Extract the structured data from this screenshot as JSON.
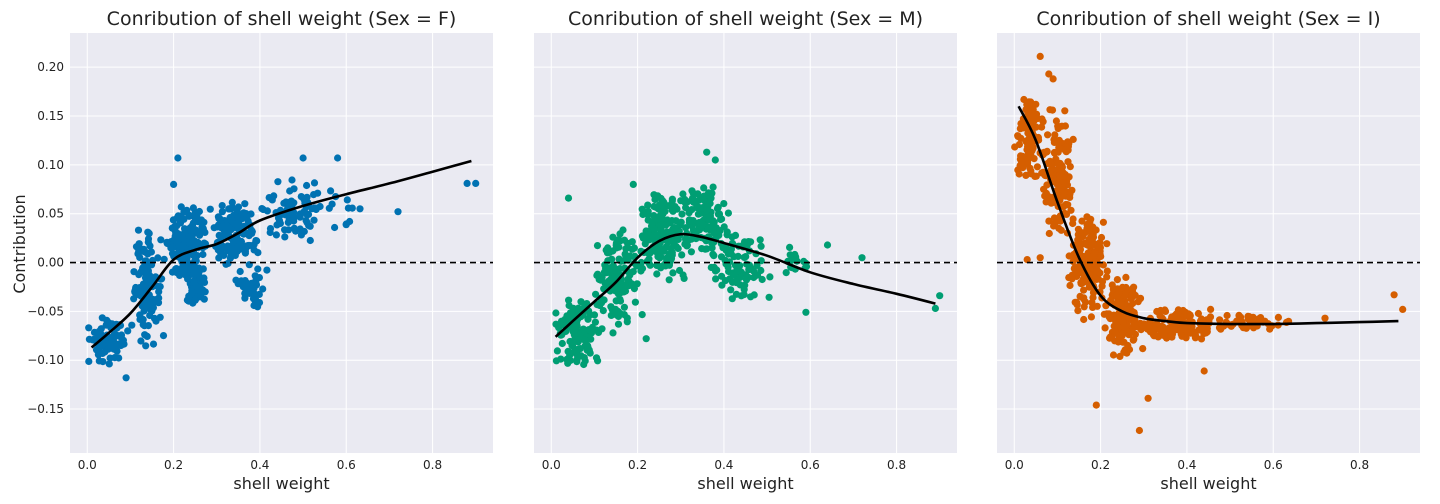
{
  "figure": {
    "ylabel": "Contribution",
    "colors": {
      "background": "#eaeaf2",
      "grid": "#ffffff",
      "trend": "#000000",
      "zero_line": "#000000"
    }
  },
  "chart_data": [
    {
      "type": "scatter",
      "title": "Conribution of shell weight (Sex = F)",
      "xlabel": "shell weight",
      "ylabel": "Contribution",
      "xlim": [
        -0.04,
        0.94
      ],
      "ylim": [
        -0.195,
        0.235
      ],
      "xticks": [
        "0.0",
        "0.2",
        "0.4",
        "0.6",
        "0.8"
      ],
      "yticks": [
        "−0.15",
        "−0.10",
        "−0.05",
        "0.00",
        "0.05",
        "0.10",
        "0.15",
        "0.20"
      ],
      "grid": true,
      "reference_line": {
        "y": 0,
        "style": "dashed"
      },
      "color": "#0072b2",
      "trend": {
        "x": [
          0.01,
          0.05,
          0.1,
          0.15,
          0.2,
          0.25,
          0.3,
          0.35,
          0.4,
          0.5,
          0.6,
          0.7,
          0.8,
          0.89
        ],
        "y": [
          -0.087,
          -0.072,
          -0.052,
          -0.025,
          0.003,
          0.013,
          0.019,
          0.03,
          0.043,
          0.058,
          0.07,
          0.081,
          0.093,
          0.104
        ]
      },
      "clusters": [
        {
          "x": [
            0.0,
            0.1
          ],
          "y": [
            -0.105,
            -0.055
          ],
          "n": 90,
          "seed": 11
        },
        {
          "x": [
            0.1,
            0.18
          ],
          "y": [
            -0.09,
            0.04
          ],
          "n": 110,
          "seed": 12
        },
        {
          "x": [
            0.18,
            0.28
          ],
          "y": [
            -0.02,
            0.065
          ],
          "n": 150,
          "seed": 13
        },
        {
          "x": [
            0.22,
            0.28
          ],
          "y": [
            -0.045,
            0.0
          ],
          "n": 70,
          "seed": 14
        },
        {
          "x": [
            0.28,
            0.4
          ],
          "y": [
            -0.005,
            0.065
          ],
          "n": 130,
          "seed": 15
        },
        {
          "x": [
            0.34,
            0.42
          ],
          "y": [
            -0.05,
            0.0
          ],
          "n": 40,
          "seed": 16
        },
        {
          "x": [
            0.4,
            0.55
          ],
          "y": [
            0.02,
            0.09
          ],
          "n": 80,
          "seed": 17
        },
        {
          "x": [
            0.55,
            0.65
          ],
          "y": [
            0.03,
            0.08
          ],
          "n": 12,
          "seed": 18
        }
      ],
      "extra_points": [
        [
          0.21,
          0.107
        ],
        [
          0.5,
          0.107
        ],
        [
          0.58,
          0.107
        ],
        [
          0.72,
          0.052
        ],
        [
          0.88,
          0.081
        ],
        [
          0.9,
          0.081
        ],
        [
          0.09,
          -0.118
        ],
        [
          0.2,
          0.08
        ]
      ]
    },
    {
      "type": "scatter",
      "title": "Conribution of shell weight (Sex = M)",
      "xlabel": "shell weight",
      "ylabel": "",
      "xlim": [
        -0.04,
        0.94
      ],
      "ylim": [
        -0.195,
        0.235
      ],
      "xticks": [
        "0.0",
        "0.2",
        "0.4",
        "0.6",
        "0.8"
      ],
      "yticks": [],
      "grid": true,
      "reference_line": {
        "y": 0,
        "style": "dashed"
      },
      "color": "#009e73",
      "trend": {
        "x": [
          0.01,
          0.05,
          0.1,
          0.15,
          0.2,
          0.25,
          0.3,
          0.35,
          0.4,
          0.5,
          0.6,
          0.7,
          0.8,
          0.89
        ],
        "y": [
          -0.076,
          -0.06,
          -0.04,
          -0.02,
          0.005,
          0.022,
          0.029,
          0.026,
          0.02,
          0.007,
          -0.01,
          -0.022,
          -0.032,
          -0.042
        ]
      },
      "clusters": [
        {
          "x": [
            0.0,
            0.12
          ],
          "y": [
            -0.108,
            -0.03
          ],
          "n": 120,
          "seed": 21
        },
        {
          "x": [
            0.1,
            0.22
          ],
          "y": [
            -0.08,
            0.04
          ],
          "n": 140,
          "seed": 22
        },
        {
          "x": [
            0.2,
            0.32
          ],
          "y": [
            -0.02,
            0.08
          ],
          "n": 160,
          "seed": 23
        },
        {
          "x": [
            0.3,
            0.42
          ],
          "y": [
            0.0,
            0.085
          ],
          "n": 120,
          "seed": 24
        },
        {
          "x": [
            0.35,
            0.52
          ],
          "y": [
            -0.04,
            0.03
          ],
          "n": 80,
          "seed": 25
        },
        {
          "x": [
            0.52,
            0.62
          ],
          "y": [
            -0.02,
            0.025
          ],
          "n": 18,
          "seed": 26
        }
      ],
      "extra_points": [
        [
          0.04,
          0.066
        ],
        [
          0.19,
          0.08
        ],
        [
          0.36,
          0.113
        ],
        [
          0.38,
          0.105
        ],
        [
          0.64,
          0.018
        ],
        [
          0.72,
          0.005
        ],
        [
          0.89,
          -0.047
        ],
        [
          0.9,
          -0.034
        ],
        [
          0.59,
          -0.051
        ],
        [
          0.22,
          -0.078
        ]
      ]
    },
    {
      "type": "scatter",
      "title": "Conribution of shell weight (Sex = I)",
      "xlabel": "shell weight",
      "ylabel": "",
      "xlim": [
        -0.04,
        0.94
      ],
      "ylim": [
        -0.195,
        0.235
      ],
      "xticks": [
        "0.0",
        "0.2",
        "0.4",
        "0.6",
        "0.8"
      ],
      "yticks": [],
      "grid": true,
      "reference_line": {
        "y": 0,
        "style": "dashed"
      },
      "color": "#d55e00",
      "trend": {
        "x": [
          0.01,
          0.05,
          0.1,
          0.15,
          0.2,
          0.25,
          0.3,
          0.35,
          0.4,
          0.5,
          0.6,
          0.7,
          0.8,
          0.89
        ],
        "y": [
          0.16,
          0.125,
          0.062,
          0.005,
          -0.034,
          -0.05,
          -0.057,
          -0.06,
          -0.062,
          -0.063,
          -0.063,
          -0.062,
          -0.061,
          -0.06
        ]
      },
      "clusters": [
        {
          "x": [
            0.0,
            0.07
          ],
          "y": [
            0.08,
            0.175
          ],
          "n": 110,
          "seed": 31
        },
        {
          "x": [
            0.06,
            0.14
          ],
          "y": [
            0.02,
            0.16
          ],
          "n": 150,
          "seed": 32
        },
        {
          "x": [
            0.12,
            0.22
          ],
          "y": [
            -0.06,
            0.06
          ],
          "n": 160,
          "seed": 33
        },
        {
          "x": [
            0.2,
            0.3
          ],
          "y": [
            -0.1,
            -0.01
          ],
          "n": 140,
          "seed": 34
        },
        {
          "x": [
            0.28,
            0.48
          ],
          "y": [
            -0.085,
            -0.045
          ],
          "n": 120,
          "seed": 35
        },
        {
          "x": [
            0.45,
            0.65
          ],
          "y": [
            -0.07,
            -0.05
          ],
          "n": 45,
          "seed": 36
        }
      ],
      "extra_points": [
        [
          0.06,
          0.211
        ],
        [
          0.08,
          0.193
        ],
        [
          0.09,
          0.188
        ],
        [
          0.19,
          -0.146
        ],
        [
          0.29,
          -0.172
        ],
        [
          0.31,
          -0.139
        ],
        [
          0.44,
          -0.111
        ],
        [
          0.72,
          -0.057
        ],
        [
          0.88,
          -0.033
        ],
        [
          0.9,
          -0.048
        ],
        [
          0.03,
          0.003
        ],
        [
          0.06,
          0.005
        ]
      ]
    }
  ]
}
